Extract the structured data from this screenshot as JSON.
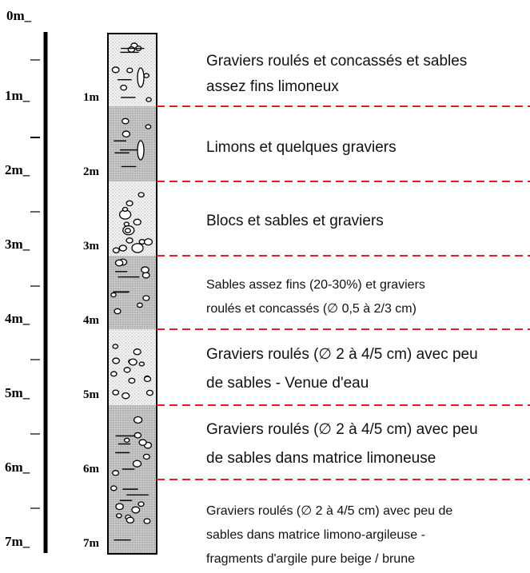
{
  "depth_scale": [
    "0m_",
    "1m_",
    "2m_",
    "3m_",
    "4m_",
    "5m_",
    "6m_",
    "7m_"
  ],
  "column_labels": [
    "1m",
    "2m",
    "3m",
    "4m",
    "5m",
    "6m",
    "7m"
  ],
  "layers": [
    {
      "lines": [
        "Graviers roulés et concassés et sables",
        "assez fins limoneux"
      ]
    },
    {
      "lines": [
        "Limons et quelques graviers"
      ]
    },
    {
      "lines": [
        "Blocs et sables et graviers"
      ]
    },
    {
      "lines": [
        "Sables assez fins (20-30%) et graviers",
        "roulés et concassés (∅ 0,5 à 2/3 cm)"
      ]
    },
    {
      "lines": [
        "Graviers roulés (∅ 2 à 4/5 cm) avec peu",
        "de sables - Venue d'eau"
      ]
    },
    {
      "lines": [
        "Graviers roulés (∅ 2 à 4/5 cm) avec peu",
        "de sables dans matrice limoneuse"
      ]
    },
    {
      "lines": [
        "Graviers roulés (∅ 2 à 4/5 cm) avec peu de",
        "sables dans matrice limono-argileuse -",
        "fragments d'argile pure beige / brune"
      ]
    }
  ]
}
